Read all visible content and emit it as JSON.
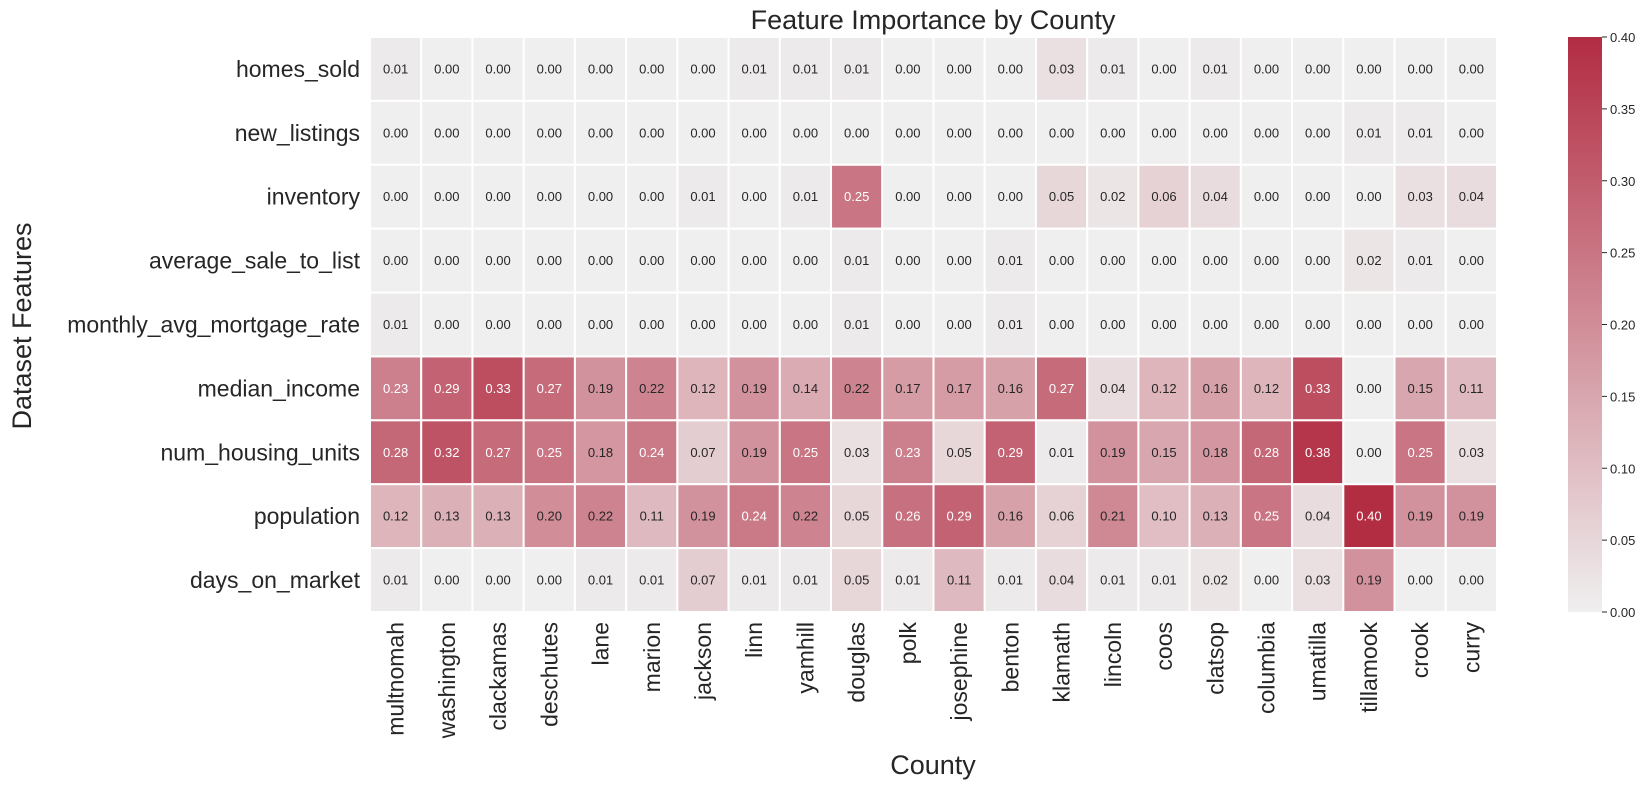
{
  "chart_data": {
    "type": "heatmap",
    "title": "Feature Importance by County",
    "xlabel": "County",
    "ylabel": "Dataset Features",
    "x_categories": [
      "multnomah",
      "washington",
      "clackamas",
      "deschutes",
      "lane",
      "marion",
      "jackson",
      "linn",
      "yamhill",
      "douglas",
      "polk",
      "josephine",
      "benton",
      "klamath",
      "lincoln",
      "coos",
      "clatsop",
      "columbia",
      "umatilla",
      "tillamook",
      "crook",
      "curry"
    ],
    "y_categories": [
      "homes_sold",
      "new_listings",
      "inventory",
      "average_sale_to_list",
      "monthly_avg_mortgage_rate",
      "median_income",
      "num_housing_units",
      "population",
      "days_on_market"
    ],
    "values": [
      [
        0.01,
        0.0,
        0.0,
        0.0,
        0.0,
        0.0,
        0.0,
        0.01,
        0.01,
        0.01,
        0.0,
        0.0,
        0.0,
        0.03,
        0.01,
        0.0,
        0.01,
        0.0,
        0.0,
        0.0,
        0.0,
        0.0
      ],
      [
        0.0,
        0.0,
        0.0,
        0.0,
        0.0,
        0.0,
        0.0,
        0.0,
        0.0,
        0.0,
        0.0,
        0.0,
        0.0,
        0.0,
        0.0,
        0.0,
        0.0,
        0.0,
        0.0,
        0.01,
        0.01,
        0.0
      ],
      [
        0.0,
        0.0,
        0.0,
        0.0,
        0.0,
        0.0,
        0.01,
        0.0,
        0.01,
        0.25,
        0.0,
        0.0,
        0.0,
        0.05,
        0.02,
        0.06,
        0.04,
        0.0,
        0.0,
        0.0,
        0.03,
        0.04
      ],
      [
        0.0,
        0.0,
        0.0,
        0.0,
        0.0,
        0.0,
        0.0,
        0.0,
        0.0,
        0.01,
        0.0,
        0.0,
        0.01,
        0.0,
        0.0,
        0.0,
        0.0,
        0.0,
        0.0,
        0.02,
        0.01,
        0.0
      ],
      [
        0.01,
        0.0,
        0.0,
        0.0,
        0.0,
        0.0,
        0.0,
        0.0,
        0.0,
        0.01,
        0.0,
        0.0,
        0.01,
        0.0,
        0.0,
        0.0,
        0.0,
        0.0,
        0.0,
        0.0,
        0.0,
        0.0
      ],
      [
        0.23,
        0.29,
        0.33,
        0.27,
        0.19,
        0.22,
        0.12,
        0.19,
        0.14,
        0.22,
        0.17,
        0.17,
        0.16,
        0.27,
        0.04,
        0.12,
        0.16,
        0.12,
        0.33,
        0.0,
        0.15,
        0.11
      ],
      [
        0.28,
        0.32,
        0.27,
        0.25,
        0.18,
        0.24,
        0.07,
        0.19,
        0.25,
        0.03,
        0.23,
        0.05,
        0.29,
        0.01,
        0.19,
        0.15,
        0.18,
        0.28,
        0.38,
        0.0,
        0.25,
        0.03
      ],
      [
        0.12,
        0.13,
        0.13,
        0.2,
        0.22,
        0.11,
        0.19,
        0.24,
        0.22,
        0.05,
        0.26,
        0.29,
        0.16,
        0.06,
        0.21,
        0.1,
        0.13,
        0.25,
        0.04,
        0.4,
        0.19,
        0.19
      ],
      [
        0.01,
        0.0,
        0.0,
        0.0,
        0.01,
        0.01,
        0.07,
        0.01,
        0.01,
        0.05,
        0.01,
        0.11,
        0.01,
        0.04,
        0.01,
        0.01,
        0.02,
        0.0,
        0.03,
        0.19,
        0.0,
        0.0
      ]
    ],
    "value_format_decimals": 2,
    "colorbar": {
      "vmin": 0.0,
      "vmax": 0.4,
      "ticks": [
        0.0,
        0.05,
        0.1,
        0.15,
        0.2,
        0.25,
        0.3,
        0.35,
        0.4
      ],
      "tick_labels": [
        "0.00",
        "0.05",
        "0.10",
        "0.15",
        "0.20",
        "0.25",
        "0.30",
        "0.35",
        "0.40"
      ],
      "colormap_low": "#efefef",
      "colormap_high": "#b22c42"
    },
    "x_tick_rotation": "vertical",
    "grid": false
  }
}
